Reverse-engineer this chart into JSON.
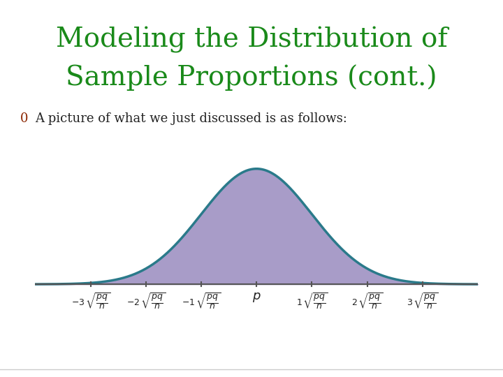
{
  "title_line1": "Modeling the Distribution of",
  "title_line2": "Sample Proportions (cont.)",
  "title_color": "#1a8a1a",
  "subtitle_bullet": "0",
  "subtitle_color_bullet": "#8b2500",
  "subtitle_color_text": "#222222",
  "background_color": "#ffffff",
  "slide_bg": "#ffffff",
  "curve_fill_color": "#a89cc8",
  "curve_line_color": "#2a7a8a",
  "axis_color": "#555555",
  "xlim": [
    -4.0,
    4.0
  ],
  "ylim": [
    -0.06,
    0.5
  ],
  "title_fontsize": 28,
  "subtitle_fontsize": 13
}
